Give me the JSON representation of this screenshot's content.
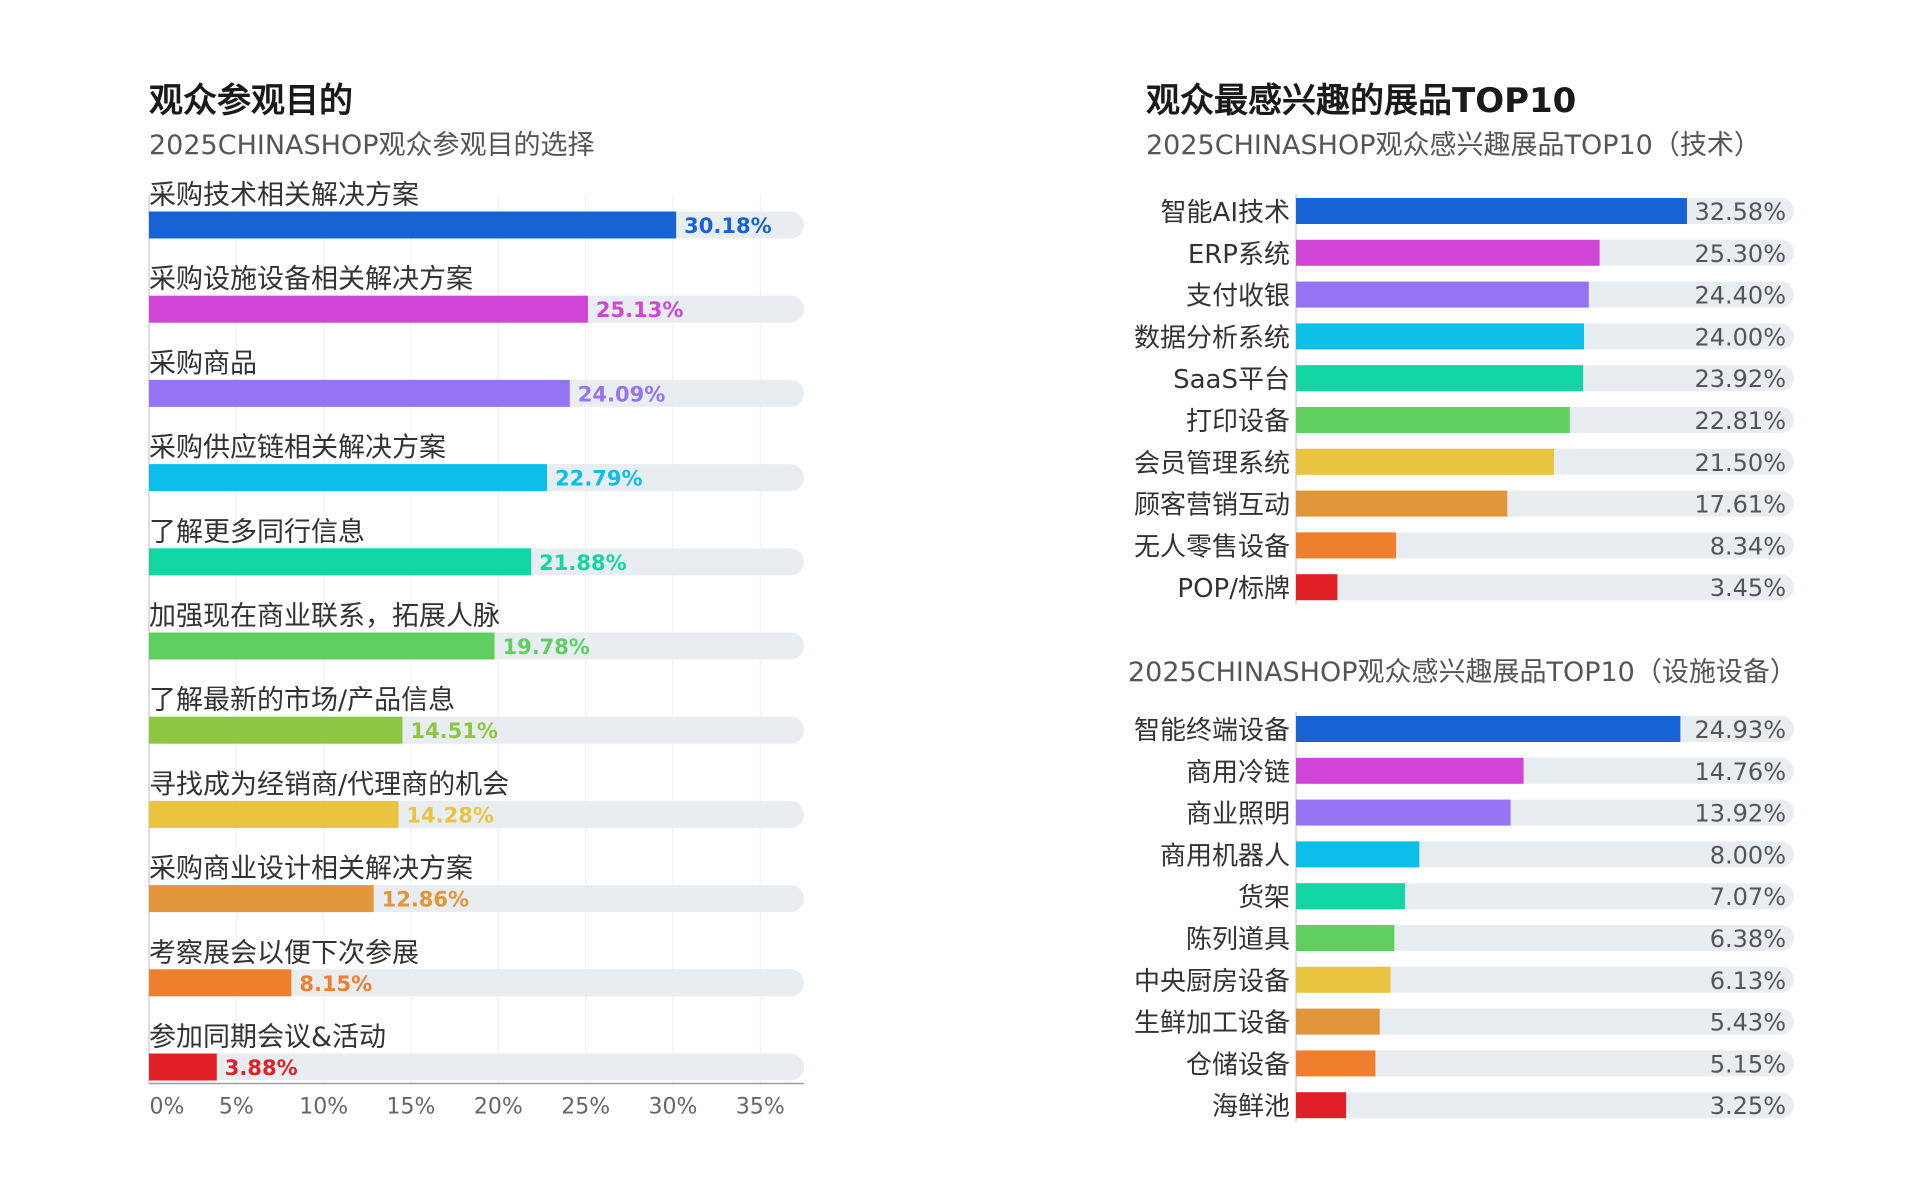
{
  "chart_data": [
    {
      "type": "bar",
      "title": "观众参观目的",
      "subtitle": "2025CHINASHOP观众参观目的选择",
      "categories": [
        "采购技术相关解决方案",
        "采购设施设备相关解决方案",
        "采购商品",
        "采购供应链相关解决方案",
        "了解更多同行信息",
        "加强现在商业联系，拓展人脉",
        "了解最新的市场/产品信息",
        "寻找成为经销商/代理商的机会",
        "采购商业设计相关解决方案",
        "考察展会以便下次参展",
        "参加同期会议&活动"
      ],
      "values": [
        30.18,
        25.13,
        24.09,
        22.79,
        21.88,
        19.78,
        14.51,
        14.28,
        12.86,
        8.15,
        3.88
      ],
      "value_labels": [
        "30.18%",
        "25.13%",
        "24.09%",
        "22.79%",
        "21.88%",
        "19.78%",
        "14.51%",
        "14.28%",
        "12.86%",
        "8.15%",
        "3.88%"
      ],
      "colors": [
        "#1763d6",
        "#cf45d6",
        "#9474f3",
        "#0bbfe9",
        "#12d6a3",
        "#5fcf5f",
        "#8dc63f",
        "#e8c440",
        "#e2963a",
        "#f07f2d",
        "#e01f26"
      ],
      "xlim": [
        0,
        37.5
      ],
      "xticks": [
        0,
        5,
        10,
        15,
        20,
        25,
        30,
        35
      ],
      "xtick_labels": [
        "0%",
        "5%",
        "10%",
        "15%",
        "20%",
        "25%",
        "30%",
        "35%"
      ],
      "grid": true
    },
    {
      "type": "bar",
      "title": "观众最感兴趣的展品TOP10",
      "subtitle": "2025CHINASHOP观众感兴趣展品TOP10（技术）",
      "categories": [
        "智能AI技术",
        "ERP系统",
        "支付收银",
        "数据分析系统",
        "SaaS平台",
        "打印设备",
        "会员管理系统",
        "顾客营销互动",
        "无人零售设备",
        "POP/标牌"
      ],
      "values": [
        32.58,
        25.3,
        24.4,
        24.0,
        23.92,
        22.81,
        21.5,
        17.61,
        8.34,
        3.45
      ],
      "value_labels": [
        "32.58%",
        "25.30%",
        "24.40%",
        "24.00%",
        "23.92%",
        "22.81%",
        "21.50%",
        "17.61%",
        "8.34%",
        "3.45%"
      ],
      "colors": [
        "#1763d6",
        "#cf45d6",
        "#9474f3",
        "#0bbfe9",
        "#12d6a3",
        "#5fcf5f",
        "#e8c440",
        "#e2963a",
        "#f07f2d",
        "#e01f26"
      ],
      "xlim": [
        0,
        41.5
      ]
    },
    {
      "type": "bar",
      "subtitle": "2025CHINASHOP观众感兴趣展品TOP10（设施设备）",
      "categories": [
        "智能终端设备",
        "商用冷链",
        "商业照明",
        "商用机器人",
        "货架",
        "陈列道具",
        "中央厨房设备",
        "生鲜加工设备",
        "仓储设备",
        "海鲜池"
      ],
      "values": [
        24.93,
        14.76,
        13.92,
        8.0,
        7.07,
        6.38,
        6.13,
        5.43,
        5.15,
        3.25
      ],
      "value_labels": [
        "24.93%",
        "14.76%",
        "13.92%",
        "8.00%",
        "7.07%",
        "6.38%",
        "6.13%",
        "5.43%",
        "5.15%",
        "3.25%"
      ],
      "colors": [
        "#1763d6",
        "#cf45d6",
        "#9474f3",
        "#0bbfe9",
        "#12d6a3",
        "#5fcf5f",
        "#e8c440",
        "#e2963a",
        "#f07f2d",
        "#e01f26"
      ],
      "xlim": [
        0,
        32.3
      ]
    }
  ]
}
